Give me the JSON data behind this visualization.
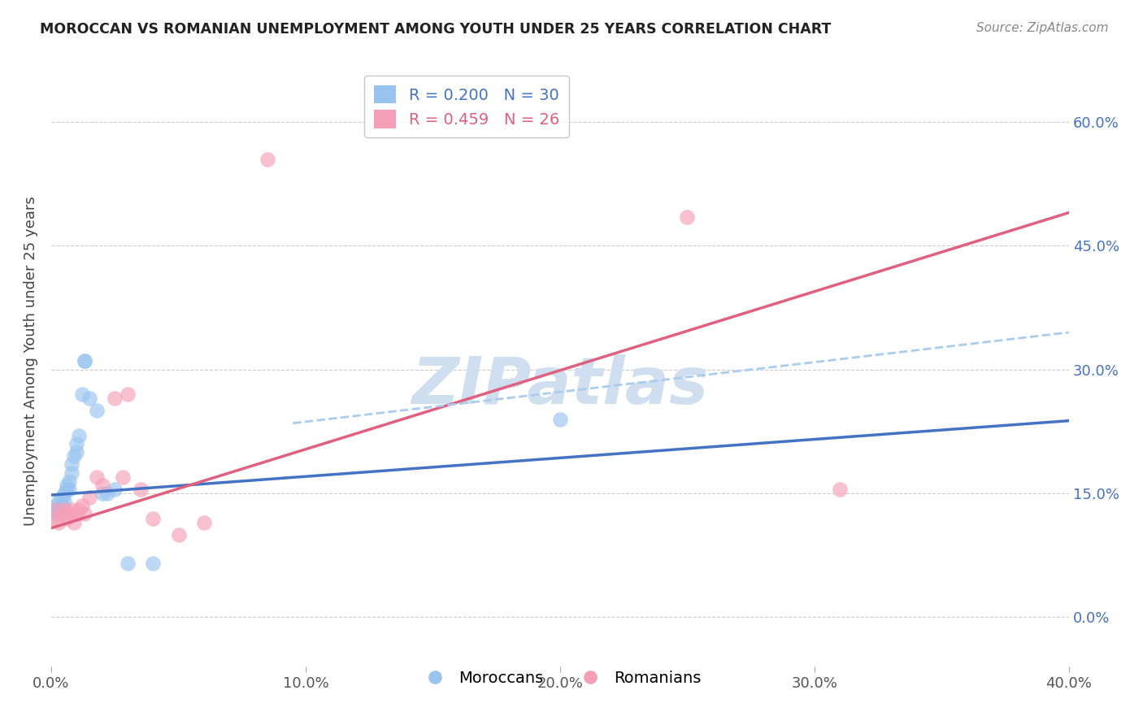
{
  "title": "MOROCCAN VS ROMANIAN UNEMPLOYMENT AMONG YOUTH UNDER 25 YEARS CORRELATION CHART",
  "source": "Source: ZipAtlas.com",
  "ylabel": "Unemployment Among Youth under 25 years",
  "legend_label1": "Moroccans",
  "legend_label2": "Romanians",
  "R1": 0.2,
  "N1": 30,
  "R2": 0.459,
  "N2": 26,
  "xlim": [
    0.0,
    0.4
  ],
  "ylim": [
    -0.06,
    0.68
  ],
  "xticks": [
    0.0,
    0.1,
    0.2,
    0.3,
    0.4
  ],
  "xtick_labels": [
    "0.0%",
    "10.0%",
    "20.0%",
    "30.0%",
    "40.0%"
  ],
  "ytick_positions": [
    0.0,
    0.15,
    0.3,
    0.45,
    0.6
  ],
  "ytick_labels": [
    "0.0%",
    "15.0%",
    "30.0%",
    "45.0%",
    "60.0%"
  ],
  "color_blue": "#99c4f0",
  "color_pink": "#f5a0b8",
  "line_blue": "#4472c4",
  "line_pink": "#e06080",
  "line_dashed_color": "#aaccee",
  "watermark": "ZIPatlas",
  "watermark_color": "#d0dff0",
  "moroccans_x": [
    0.001,
    0.002,
    0.002,
    0.003,
    0.003,
    0.004,
    0.004,
    0.005,
    0.005,
    0.006,
    0.006,
    0.007,
    0.007,
    0.008,
    0.008,
    0.009,
    0.01,
    0.01,
    0.011,
    0.012,
    0.013,
    0.013,
    0.015,
    0.018,
    0.02,
    0.022,
    0.025,
    0.03,
    0.04,
    0.2
  ],
  "moroccans_y": [
    0.13,
    0.135,
    0.125,
    0.14,
    0.13,
    0.145,
    0.135,
    0.15,
    0.14,
    0.155,
    0.16,
    0.165,
    0.155,
    0.175,
    0.185,
    0.195,
    0.2,
    0.21,
    0.22,
    0.27,
    0.31,
    0.31,
    0.265,
    0.25,
    0.15,
    0.15,
    0.155,
    0.065,
    0.065,
    0.24
  ],
  "romanians_x": [
    0.001,
    0.002,
    0.003,
    0.004,
    0.005,
    0.006,
    0.007,
    0.008,
    0.009,
    0.01,
    0.011,
    0.012,
    0.013,
    0.015,
    0.018,
    0.02,
    0.025,
    0.028,
    0.03,
    0.035,
    0.04,
    0.05,
    0.06,
    0.085,
    0.25,
    0.31
  ],
  "romanians_y": [
    0.12,
    0.13,
    0.115,
    0.125,
    0.13,
    0.12,
    0.125,
    0.13,
    0.115,
    0.125,
    0.13,
    0.135,
    0.125,
    0.145,
    0.17,
    0.16,
    0.265,
    0.17,
    0.27,
    0.155,
    0.12,
    0.1,
    0.115,
    0.555,
    0.485,
    0.155
  ],
  "blue_line_x": [
    0.0,
    0.4
  ],
  "blue_line_y": [
    0.148,
    0.238
  ],
  "pink_line_x": [
    0.0,
    0.4
  ],
  "pink_line_y": [
    0.108,
    0.49
  ],
  "dashed_line_x": [
    0.095,
    0.4
  ],
  "dashed_line_y": [
    0.235,
    0.345
  ],
  "background_color": "#ffffff",
  "grid_color": "#cccccc"
}
